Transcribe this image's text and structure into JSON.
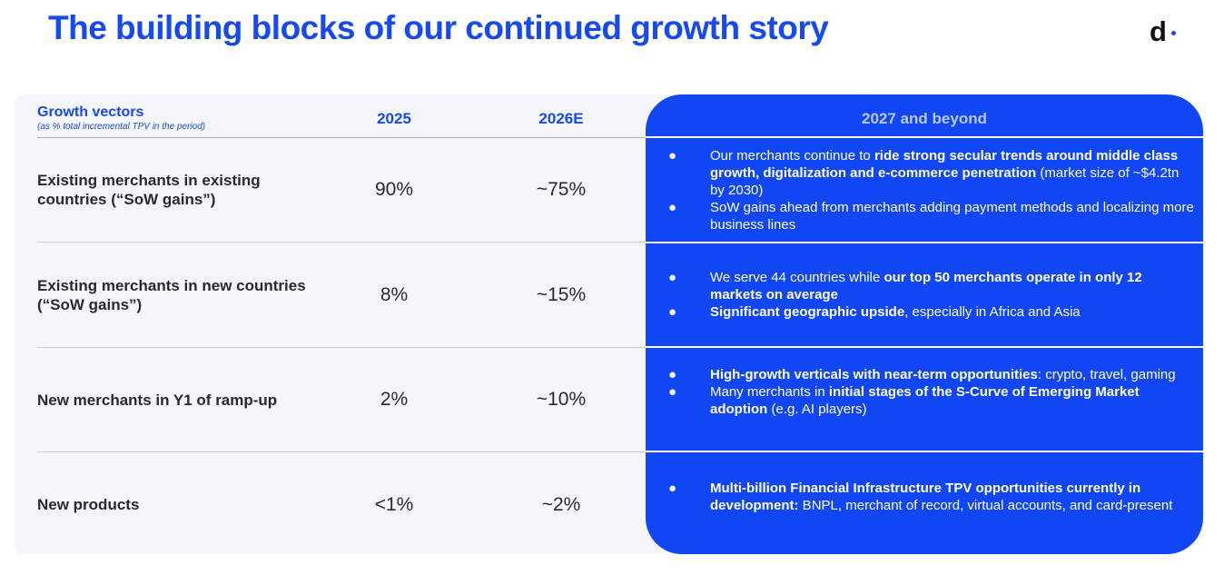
{
  "title": "The building blocks of our continued growth story",
  "logo": {
    "letter": "d"
  },
  "header": {
    "vectors": "Growth vectors",
    "vectors_note": "(as % total incremental TPV in the period)",
    "col_2025": "2025",
    "col_2026": "2026E",
    "col_beyond": "2027 and beyond"
  },
  "rows": [
    {
      "label": "Existing merchants in existing countries (“SoW gains”)",
      "v2025": "90%",
      "v2026": "~75%",
      "bullets": [
        {
          "a": "Our merchants continue to ",
          "b": "ride strong secular trends around middle class growth, digitalization and e-commerce penetration",
          "c": " (market size of ~$4.2tn by 2030)"
        },
        {
          "a": "SoW gains ahead from  merchants adding payment methods and localizing more  business lines",
          "b": "",
          "c": ""
        }
      ]
    },
    {
      "label": "Existing merchants in new countries  (“SoW gains”)",
      "v2025": "8%",
      "v2026": "~15%",
      "bullets": [
        {
          "a": "We serve 44 countries while ",
          "b": "our top 50 merchants operate in only 12 markets on average",
          "c": ""
        },
        {
          "a": "",
          "b": "Significant geographic upside",
          "c": ", especially in Africa and Asia"
        }
      ]
    },
    {
      "label": "New merchants in Y1 of ramp-up",
      "v2025": "2%",
      "v2026": "~10%",
      "bullets": [
        {
          "a": "",
          "b": "High-growth verticals with near-term opportunities",
          "c": ": crypto, travel, gaming"
        },
        {
          "a": "Many merchants  in ",
          "b": "initial stages of the S-Curve of Emerging Market adoption",
          "c": " (e.g. AI players)"
        }
      ]
    },
    {
      "label": "New products",
      "v2025": "<1%",
      "v2026": "~2%",
      "bullets": [
        {
          "a": "",
          "b": "Multi-billion Financial Infrastructure  TPV opportunities currently in development:",
          "c": " BNPL, merchant of record, virtual accounts, and card-present"
        }
      ]
    }
  ],
  "bullet_glyph": "●"
}
